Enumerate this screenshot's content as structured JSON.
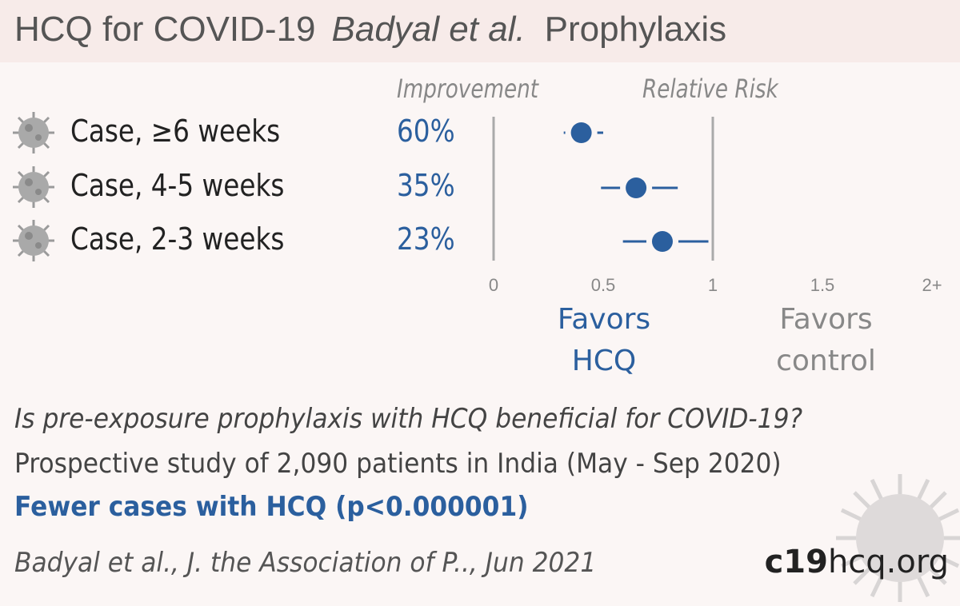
{
  "header": {
    "title": "HCQ for COVID-19",
    "authors": "Badyal et al.",
    "kind": "Prophylaxis"
  },
  "columns": {
    "improvement": "Improvement",
    "relative_risk": "Relative Risk"
  },
  "rows": [
    {
      "label": "Case, ≥6 weeks",
      "improvement": "60%",
      "icon": "virus-icon"
    },
    {
      "label": "Case, 4-5 weeks",
      "improvement": "35%",
      "icon": "virus-icon"
    },
    {
      "label": "Case, 2-3 weeks",
      "improvement": "23%",
      "icon": "virus-icon"
    }
  ],
  "chart_data": {
    "type": "forest",
    "x_ticks": [
      "0",
      "0.5",
      "1",
      "1.5",
      "2+"
    ],
    "xlim": [
      0,
      2
    ],
    "reference_line": 1,
    "series": [
      {
        "category": "Case, ≥6 weeks",
        "rr": 0.4,
        "ci_low": 0.32,
        "ci_high": 0.5
      },
      {
        "category": "Case, 4-5 weeks",
        "rr": 0.65,
        "ci_low": 0.49,
        "ci_high": 0.84
      },
      {
        "category": "Case, 2-3 weeks",
        "rr": 0.77,
        "ci_low": 0.59,
        "ci_high": 0.98
      }
    ],
    "favors_left": [
      "Favors",
      "HCQ"
    ],
    "favors_right": [
      "Favors",
      "control"
    ]
  },
  "footer": {
    "question": "Is pre-exposure prophylaxis with HCQ beneficial for COVID-19?",
    "description": "Prospective study of 2,090 patients in India (May - Sep 2020)",
    "conclusion": "Fewer cases with HCQ (p<0.000001)",
    "citation": "Badyal et al., J. the Association of P.., Jun 2021",
    "brand_bold": "c19",
    "brand_rest": "hcq.org"
  },
  "colors": {
    "accent": "#2b5f9e",
    "title_bar": "#f7ebe9",
    "background": "#fbf6f5",
    "axis": "#aaaaaa"
  }
}
